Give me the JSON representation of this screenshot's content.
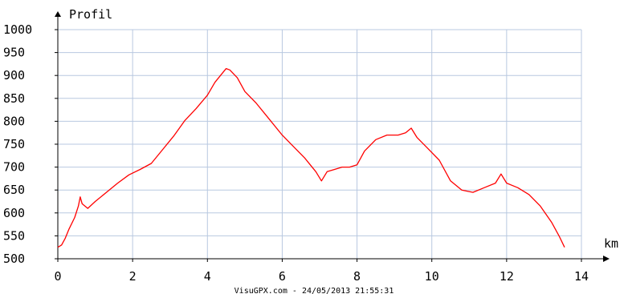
{
  "chart_data": {
    "type": "line",
    "title": "",
    "ylabel": "Profil",
    "xlabel": "km",
    "xlim": [
      0,
      14
    ],
    "ylim": [
      500,
      1000
    ],
    "xticks": [
      0,
      2,
      4,
      6,
      8,
      10,
      12,
      14
    ],
    "yticks": [
      500,
      550,
      600,
      650,
      700,
      750,
      800,
      850,
      900,
      950,
      1000
    ],
    "grid": true,
    "colors": {
      "line": "#ff0000",
      "grid": "#b8c8e0",
      "axis": "#000000"
    },
    "series": [
      {
        "x": [
          0.0,
          0.1,
          0.2,
          0.3,
          0.45,
          0.55,
          0.6,
          0.65,
          0.8,
          1.0,
          1.3,
          1.6,
          1.9,
          2.2,
          2.5,
          2.8,
          3.1,
          3.4,
          3.7,
          4.0,
          4.2,
          4.4,
          4.5,
          4.6,
          4.8,
          5.0,
          5.3,
          5.6,
          6.0,
          6.3,
          6.6,
          6.9,
          7.05,
          7.2,
          7.4,
          7.6,
          7.8,
          8.0,
          8.2,
          8.5,
          8.8,
          9.1,
          9.3,
          9.45,
          9.6,
          9.9,
          10.2,
          10.5,
          10.8,
          11.1,
          11.4,
          11.7,
          11.85,
          12.0,
          12.3,
          12.6,
          12.9,
          13.2,
          13.4,
          13.55
        ],
        "y": [
          525,
          530,
          545,
          565,
          590,
          615,
          635,
          620,
          610,
          625,
          645,
          665,
          683,
          695,
          708,
          738,
          768,
          802,
          828,
          857,
          885,
          905,
          915,
          912,
          895,
          865,
          840,
          810,
          770,
          745,
          720,
          690,
          670,
          690,
          695,
          700,
          700,
          705,
          735,
          760,
          770,
          770,
          775,
          785,
          765,
          740,
          715,
          670,
          650,
          645,
          655,
          665,
          685,
          665,
          655,
          640,
          615,
          580,
          550,
          525
        ]
      }
    ]
  },
  "footer": "VisuGPX.com - 24/05/2013 21:55:31"
}
